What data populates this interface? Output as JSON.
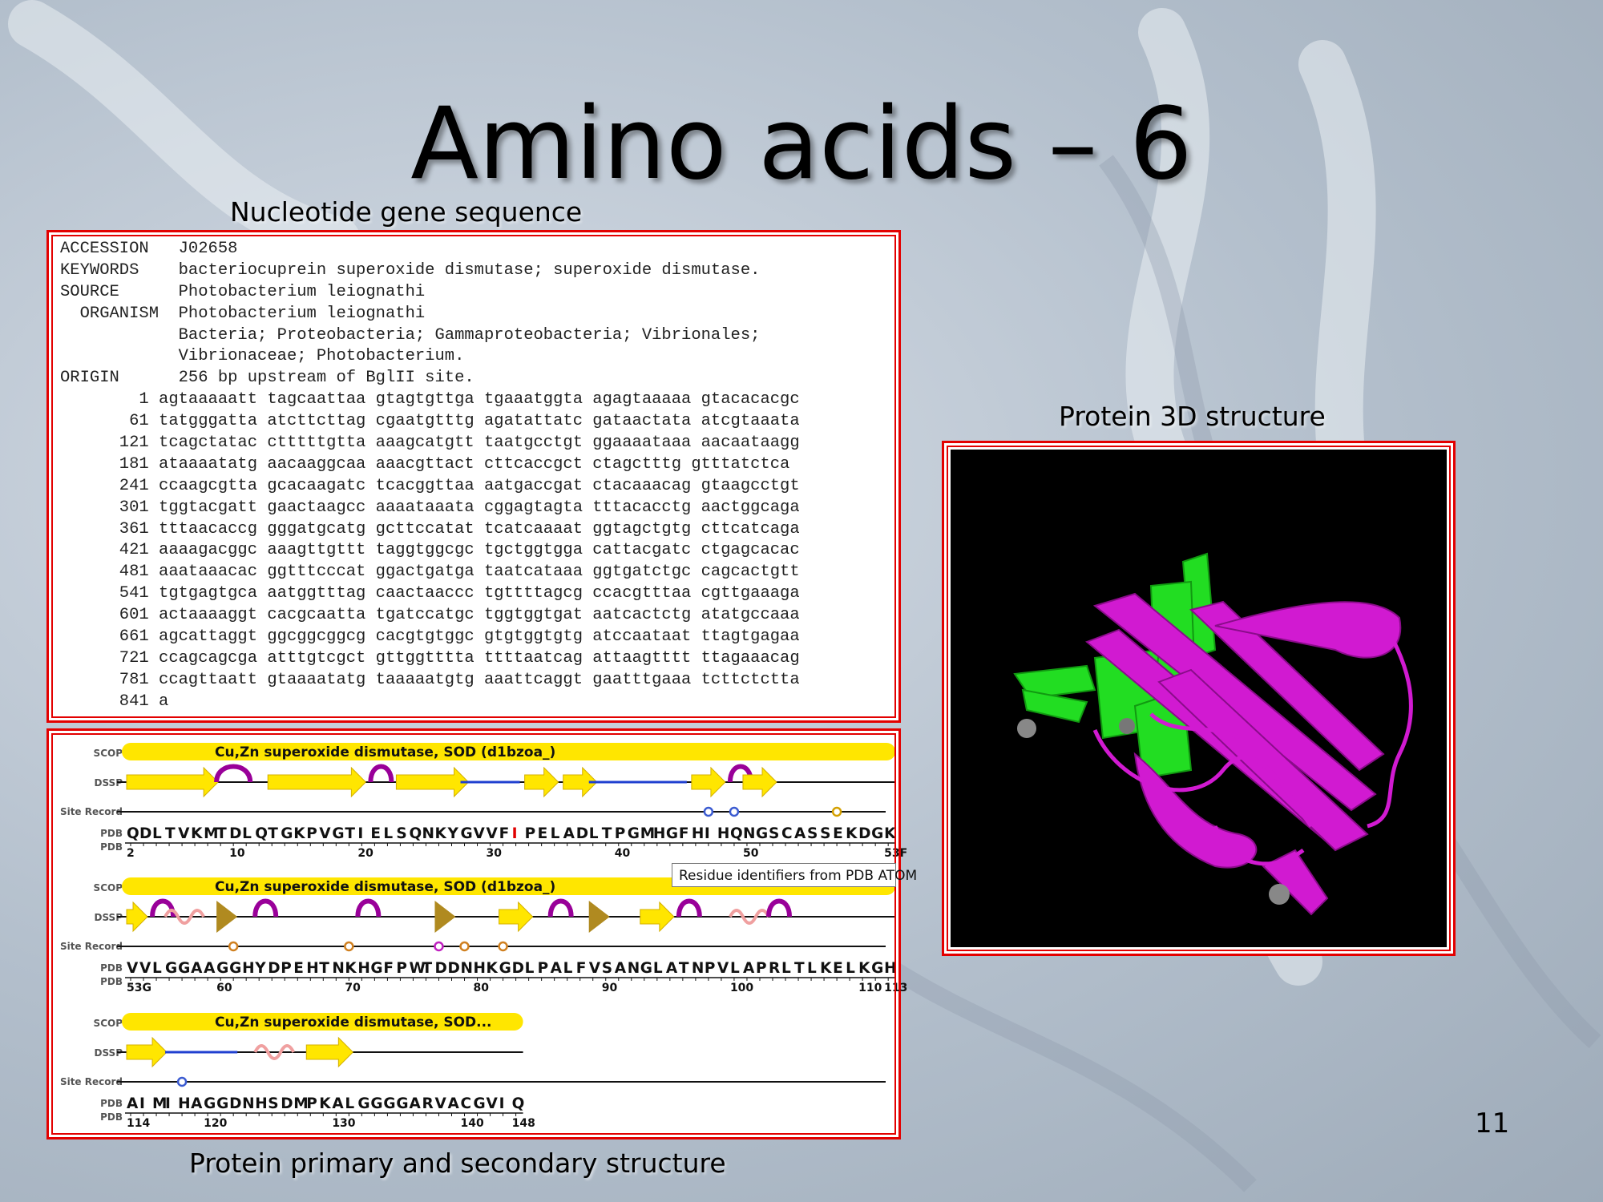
{
  "slide": {
    "title": "Amino acids – 6",
    "page_number": "11"
  },
  "captions": {
    "nucleotide": "Nucleotide gene sequence",
    "protein3d": "Protein 3D structure",
    "primary": "Protein primary and secondary structure"
  },
  "genbank": {
    "lines": [
      "ACCESSION   J02658",
      "KEYWORDS    bacteriocuprein superoxide dismutase; superoxide dismutase.",
      "SOURCE      Photobacterium leiognathi",
      "  ORGANISM  Photobacterium leiognathi",
      "            Bacteria; Proteobacteria; Gammaproteobacteria; Vibrionales;",
      "            Vibrionaceae; Photobacterium.",
      "ORIGIN      256 bp upstream of BglII site.",
      "        1 agtaaaaatt tagcaattaa gtagtgttga tgaaatggta agagtaaaaa gtacacacgc",
      "       61 tatgggatta atcttcttag cgaatgtttg agatattatc gataactata atcgtaaata",
      "      121 tcagctatac ctttttgtta aaagcatgtt taatgcctgt ggaaaataaa aacaataagg",
      "      181 ataaaatatg aacaaggcaa aaacgttact cttcaccgct ctagctttg gtttatctca",
      "      241 ccaagcgtta gcacaagatc tcacggttaa aatgaccgat ctacaaacag gtaagcctgt",
      "      301 tggtacgatt gaactaagcc aaaataaata cggagtagta tttacacctg aactggcaga",
      "      361 tttaacaccg gggatgcatg gcttccatat tcatcaaaat ggtagctgtg cttcatcaga",
      "      421 aaaagacggc aaagttgttt taggtggcgc tgctggtgga cattacgatc ctgagcacac",
      "      481 aaataaacac ggtttcccat ggactgatga taatcataaa ggtgatctgc cagcactgtt",
      "      541 tgtgagtgca aatggtttag caactaaccc tgttttagcg ccacgtttaa cgttgaaaga",
      "      601 actaaaaggt cacgcaatta tgatccatgc tggtggtgat aatcactctg atatgccaaa",
      "      661 agcattaggt ggcggcggcg cacgtgtggc gtgtggtgtg atccaataat ttagtgagaa",
      "      721 ccagcagcga atttgtcgct gttggtttta ttttaatcag attaagtttt ttagaaacag",
      "      781 ccagttaatt gtaaaatatg taaaaatgtg aaattcaggt gaatttgaaa tcttctctta",
      "      841 a"
    ]
  },
  "track_labels": {
    "scop": "SCOP",
    "dssp": "DSSP",
    "site": "Site Record",
    "pdb": "PDB"
  },
  "rows": [
    {
      "scop": "Cu,Zn superoxide dismutase, SOD (d1bzoa_)",
      "sequence": [
        "Q",
        "D",
        "L",
        "T",
        "V",
        "K",
        "M",
        "T",
        "D",
        "L",
        "Q",
        "T",
        "G",
        "K",
        "P",
        "V",
        "G",
        "T",
        "I",
        "E",
        "L",
        "S",
        "Q",
        "N",
        "K",
        "Y",
        "G",
        "V",
        "V",
        "F",
        "I",
        "P",
        "E",
        "L",
        "A",
        "D",
        "L",
        "T",
        "P",
        "G",
        "M",
        "H",
        "G",
        "F",
        "H",
        "I",
        "H",
        "Q",
        "N",
        "G",
        "S",
        "C",
        "A",
        "S",
        "S",
        "E",
        "K",
        "D",
        "G",
        "K"
      ],
      "highlight_index": 30,
      "ticks": [
        {
          "label": "2",
          "i": 0
        },
        {
          "label": "10",
          "i": 8
        },
        {
          "label": "20",
          "i": 18
        },
        {
          "label": "30",
          "i": 28
        },
        {
          "label": "40",
          "i": 38
        },
        {
          "label": "50",
          "i": 48
        },
        {
          "label": "53F",
          "i": 59
        }
      ]
    },
    {
      "scop": "Cu,Zn superoxide dismutase, SOD (d1bzoa_)",
      "sequence": [
        "V",
        "V",
        "L",
        "G",
        "G",
        "A",
        "A",
        "G",
        "G",
        "H",
        "Y",
        "D",
        "P",
        "E",
        "H",
        "T",
        "N",
        "K",
        "H",
        "G",
        "F",
        "P",
        "W",
        "T",
        "D",
        "D",
        "N",
        "H",
        "K",
        "G",
        "D",
        "L",
        "P",
        "A",
        "L",
        "F",
        "V",
        "S",
        "A",
        "N",
        "G",
        "L",
        "A",
        "T",
        "N",
        "P",
        "V",
        "L",
        "A",
        "P",
        "R",
        "L",
        "T",
        "L",
        "K",
        "E",
        "L",
        "K",
        "G",
        "H"
      ],
      "highlight_index": -1,
      "ticks": [
        {
          "label": "53G",
          "i": 0
        },
        {
          "label": "60",
          "i": 7
        },
        {
          "label": "70",
          "i": 17
        },
        {
          "label": "80",
          "i": 27
        },
        {
          "label": "90",
          "i": 37
        },
        {
          "label": "100",
          "i": 47
        },
        {
          "label": "110",
          "i": 57
        },
        {
          "label": "113",
          "i": 59
        }
      ]
    },
    {
      "scop": "Cu,Zn superoxide dismutase, SOD...",
      "sequence": [
        "A",
        "I",
        "M",
        "I",
        "H",
        "A",
        "G",
        "G",
        "D",
        "N",
        "H",
        "S",
        "D",
        "M",
        "P",
        "K",
        "A",
        "L",
        "G",
        "G",
        "G",
        "G",
        "A",
        "R",
        "V",
        "A",
        "C",
        "G",
        "V",
        "I",
        "Q"
      ],
      "highlight_index": -1,
      "ticks": [
        {
          "label": "114",
          "i": 0
        },
        {
          "label": "120",
          "i": 6
        },
        {
          "label": "130",
          "i": 16
        },
        {
          "label": "140",
          "i": 26
        },
        {
          "label": "148",
          "i": 30
        }
      ]
    }
  ],
  "tooltip": "Residue identifiers from PDB ATOM",
  "colors": {
    "frame": "#e30000",
    "strand": "#ffe600",
    "turn": "#990099",
    "highlight": "#e00000",
    "protein_magenta": "#d11ad1",
    "protein_green": "#22dd22"
  }
}
